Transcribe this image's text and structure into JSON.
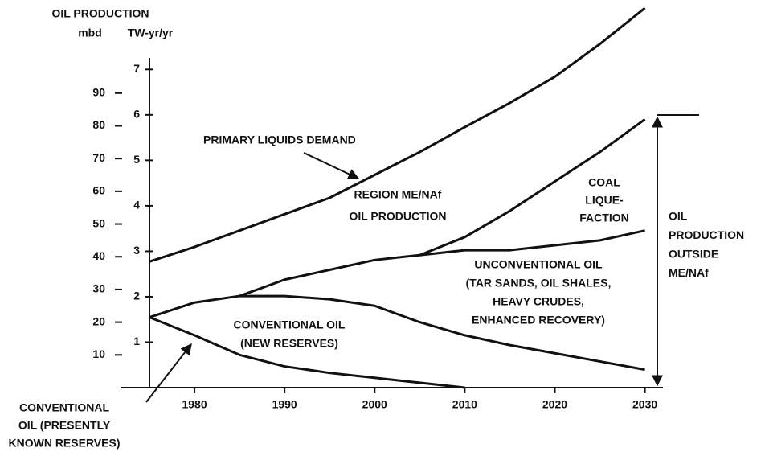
{
  "chart_data": {
    "type": "line",
    "axis_title_top": "OIL PRODUCTION",
    "ylabel": "mbd",
    "y2label": "TW-yr/yr",
    "x": [
      1975,
      1980,
      1985,
      1990,
      1995,
      2000,
      2005,
      2010,
      2015,
      2020,
      2025,
      2030
    ],
    "xlim": [
      1975,
      2032
    ],
    "xticks": [
      1980,
      1990,
      2000,
      2010,
      2020,
      2030
    ],
    "ylim": [
      0,
      116
    ],
    "yticks": [
      10,
      20,
      30,
      40,
      50,
      60,
      70,
      80,
      90
    ],
    "y2lim": [
      0,
      8.35
    ],
    "y2ticks": [
      1,
      2,
      3,
      4,
      5,
      6,
      7
    ],
    "series": [
      {
        "color": "#111111",
        "values": [
          38.5,
          43,
          48,
          53,
          58,
          65,
          72,
          79.6,
          87,
          95,
          105,
          116
        ]
      },
      {
        "color": "#111111",
        "values": [
          21.5,
          26,
          28,
          33,
          36,
          39,
          40.5,
          46,
          54,
          63,
          72,
          82
        ]
      },
      {
        "color": "#111111",
        "values": [
          null,
          null,
          null,
          null,
          null,
          null,
          40.5,
          42,
          42,
          43.5,
          45,
          48
        ]
      },
      {
        "color": "#111111",
        "values": [
          null,
          null,
          28,
          28,
          27,
          25,
          20,
          16,
          13,
          10.5,
          8,
          5.5
        ]
      },
      {
        "color": "#111111",
        "values": [
          21.5,
          16,
          10,
          6.5,
          4.5,
          3,
          1.5,
          0,
          null,
          null,
          null,
          null
        ]
      }
    ],
    "annotations": [
      [
        "PRIMARY LIQUIDS DEMAND"
      ],
      [
        "REGION ME/NAf",
        "OIL PRODUCTION"
      ],
      [
        "COAL",
        "LIQUE-",
        "FACTION"
      ],
      [
        "OIL",
        "PRODUCTION",
        "OUTSIDE",
        "ME/NAf"
      ],
      [
        "UNCONVENTIONAL OIL",
        "(TAR SANDS, OIL SHALES,",
        "HEAVY CRUDES,",
        "ENHANCED RECOVERY)"
      ],
      [
        "CONVENTIONAL OIL",
        "(NEW RESERVES)"
      ],
      [
        "CONVENTIONAL",
        "OIL (PRESENTLY",
        "KNOWN RESERVES)"
      ]
    ]
  }
}
